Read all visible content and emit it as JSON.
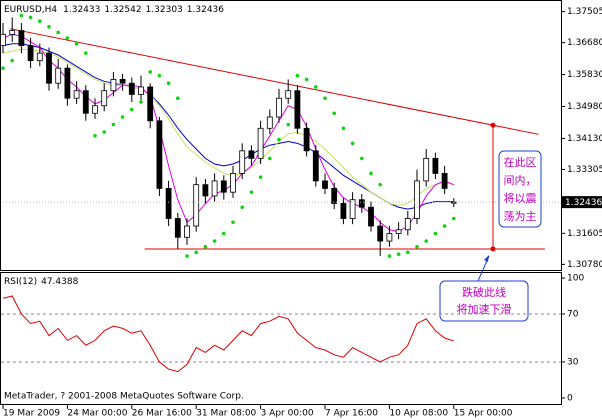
{
  "chart_data": [
    {
      "type": "candlestick",
      "title": "EURUSD,H4",
      "xlim": [
        0,
        60
      ],
      "xticks": [
        {
          "value": 0,
          "label": "19 Mar 2009"
        },
        {
          "value": 7,
          "label": "24 Mar 00:00"
        },
        {
          "value": 14,
          "label": "26 Mar 16:00"
        },
        {
          "value": 21,
          "label": "31 Mar 08:00"
        },
        {
          "value": 28,
          "label": "3 Apr 00:00"
        },
        {
          "value": 35,
          "label": "7 Apr 16:00"
        },
        {
          "value": 42,
          "label": "10 Apr 08:00"
        },
        {
          "value": 49,
          "label": "15 Apr 00:00"
        }
      ],
      "ylim": [
        1.3063,
        1.3776
      ],
      "yticks": [
        1.37505,
        {
          "value": 1.3668,
          "label": "1.36680"
        },
        {
          "value": 1.3583,
          "label": "1.35830"
        },
        {
          "value": 1.3498,
          "label": "1.34980"
        },
        {
          "value": 1.3413,
          "label": "1.34130"
        },
        1.33305,
        1.31605,
        {
          "value": 1.3078,
          "label": "1.30780"
        }
      ],
      "grid": false,
      "up_color": "#ffffff",
      "down_color": "#000000",
      "open": [
        1.366,
        1.369,
        1.37,
        1.366,
        1.362,
        1.364,
        1.356,
        1.36,
        1.352,
        1.354,
        1.348,
        1.35,
        1.354,
        1.357,
        1.356,
        1.353,
        1.355,
        1.346,
        1.328,
        1.32,
        1.315,
        1.318,
        1.329,
        1.326,
        1.33,
        1.327,
        1.332,
        1.338,
        1.336,
        1.344,
        1.347,
        1.352,
        1.354,
        1.344,
        1.338,
        1.33,
        1.328,
        1.324,
        1.32,
        1.325,
        1.323,
        1.318,
        1.314,
        1.316,
        1.317,
        1.32,
        1.33,
        1.336,
        1.332,
        1.32433
      ],
      "high": [
        1.372,
        1.3735,
        1.372,
        1.368,
        1.3665,
        1.3655,
        1.3625,
        1.361,
        1.3565,
        1.3555,
        1.352,
        1.356,
        1.359,
        1.3585,
        1.3575,
        1.358,
        1.356,
        1.347,
        1.33,
        1.3215,
        1.32,
        1.331,
        1.3305,
        1.332,
        1.3315,
        1.334,
        1.34,
        1.3395,
        1.346,
        1.349,
        1.3545,
        1.357,
        1.3555,
        1.3455,
        1.3395,
        1.332,
        1.3295,
        1.3255,
        1.327,
        1.3265,
        1.3245,
        1.3195,
        1.318,
        1.319,
        1.322,
        1.333,
        1.3385,
        1.3375,
        1.334,
        1.32542
      ],
      "low": [
        1.364,
        1.367,
        1.364,
        1.36,
        1.3605,
        1.354,
        1.3545,
        1.35,
        1.3505,
        1.346,
        1.3465,
        1.3485,
        1.3525,
        1.354,
        1.351,
        1.3515,
        1.344,
        1.326,
        1.318,
        1.312,
        1.313,
        1.3165,
        1.324,
        1.3245,
        1.325,
        1.3255,
        1.3305,
        1.334,
        1.3345,
        1.3425,
        1.3455,
        1.3505,
        1.3425,
        1.3365,
        1.3285,
        1.3265,
        1.3225,
        1.3185,
        1.3185,
        1.3215,
        1.3165,
        1.31,
        1.3125,
        1.3145,
        1.3155,
        1.3185,
        1.3285,
        1.3305,
        1.3265,
        1.32303
      ],
      "close": [
        1.369,
        1.37,
        1.366,
        1.362,
        1.364,
        1.356,
        1.36,
        1.352,
        1.354,
        1.348,
        1.35,
        1.354,
        1.357,
        1.356,
        1.353,
        1.355,
        1.346,
        1.328,
        1.32,
        1.315,
        1.318,
        1.329,
        1.326,
        1.33,
        1.327,
        1.332,
        1.338,
        1.336,
        1.344,
        1.347,
        1.352,
        1.354,
        1.344,
        1.338,
        1.33,
        1.328,
        1.324,
        1.32,
        1.325,
        1.323,
        1.318,
        1.314,
        1.316,
        1.317,
        1.32,
        1.33,
        1.336,
        1.332,
        1.328,
        1.32436
      ],
      "series": [
        {
          "color": "#0000cc",
          "values": [
            1.366,
            1.3665,
            1.3665,
            1.366,
            1.3655,
            1.3645,
            1.3635,
            1.362,
            1.3605,
            1.359,
            1.3575,
            1.3565,
            1.356,
            1.3555,
            1.355,
            1.3545,
            1.353,
            1.3505,
            1.3475,
            1.344,
            1.341,
            1.3385,
            1.336,
            1.3345,
            1.334,
            1.3345,
            1.3355,
            1.337,
            1.3385,
            1.3395,
            1.34,
            1.3405,
            1.34,
            1.339,
            1.3375,
            1.3355,
            1.3335,
            1.3315,
            1.33,
            1.3285,
            1.327,
            1.3255,
            1.324,
            1.323,
            1.3225,
            1.323,
            1.324,
            1.3245,
            1.3245,
            1.3245
          ]
        },
        {
          "color": "#c8e060",
          "values": [
            1.364,
            1.3645,
            1.365,
            1.365,
            1.3645,
            1.364,
            1.363,
            1.3615,
            1.36,
            1.3585,
            1.357,
            1.356,
            1.3555,
            1.3555,
            1.355,
            1.3545,
            1.353,
            1.35,
            1.3465,
            1.3425,
            1.339,
            1.337,
            1.335,
            1.3335,
            1.332,
            1.3315,
            1.332,
            1.3335,
            1.3355,
            1.338,
            1.3405,
            1.3425,
            1.343,
            1.342,
            1.3405,
            1.3385,
            1.336,
            1.3335,
            1.331,
            1.329,
            1.327,
            1.3255,
            1.324,
            1.3235,
            1.324,
            1.326,
            1.328,
            1.329,
            1.3295,
            1.329
          ]
        },
        {
          "color": "#e000e0",
          "values": [
            1.368,
            1.369,
            1.3685,
            1.367,
            1.3655,
            1.362,
            1.36,
            1.357,
            1.355,
            1.3525,
            1.3505,
            1.3515,
            1.3535,
            1.3555,
            1.3555,
            1.355,
            1.3525,
            1.344,
            1.334,
            1.325,
            1.319,
            1.321,
            1.324,
            1.3265,
            1.3275,
            1.329,
            1.332,
            1.334,
            1.338,
            1.342,
            1.346,
            1.35,
            1.349,
            1.3445,
            1.3385,
            1.333,
            1.3285,
            1.3255,
            1.324,
            1.323,
            1.3215,
            1.319,
            1.317,
            1.3165,
            1.318,
            1.3215,
            1.326,
            1.329,
            1.33,
            1.329
          ]
        }
      ],
      "sar_color": "#11d411",
      "sar": [
        1.36,
        1.362,
        1.374,
        1.3735,
        1.3725,
        1.371,
        1.3695,
        1.368,
        1.3665,
        1.364,
        1.342,
        1.343,
        1.345,
        1.347,
        1.349,
        1.351,
        1.359,
        1.358,
        1.356,
        1.352,
        1.31,
        1.311,
        1.3125,
        1.314,
        1.316,
        1.319,
        1.323,
        1.327,
        1.331,
        1.336,
        1.341,
        1.345,
        1.358,
        1.357,
        1.355,
        1.352,
        1.348,
        1.344,
        1.34,
        1.336,
        1.332,
        1.329,
        1.31,
        1.3105,
        1.311,
        1.3125,
        1.314,
        1.316,
        1.318,
        1.32
      ],
      "trendlines": [
        {
          "color": "#dd0000",
          "x": [
            0.8,
            58.2
          ],
          "y": [
            1.3705,
            1.3424
          ]
        },
        {
          "color": "#dd0000",
          "x": [
            15.4,
            58.9
          ],
          "y": [
            1.3119,
            1.3119
          ]
        }
      ],
      "annotations": [
        {
          "lines": [
            "在此区",
            "间内，",
            "将以震",
            "荡为主"
          ]
        },
        {
          "lines": [
            "跌破此线",
            "将加速下滑"
          ]
        }
      ]
    },
    {
      "type": "line",
      "title": "RSI(12)",
      "xlim": [
        0,
        60
      ],
      "ylim": [
        0,
        100
      ],
      "yticks": [
        100,
        70,
        30,
        0
      ],
      "grid": "dashed",
      "series": [
        {
          "color": "#dd0000",
          "values": [
            83,
            85,
            70,
            62,
            64,
            52,
            58,
            48,
            52,
            44,
            48,
            56,
            60,
            58,
            54,
            56,
            44,
            30,
            24,
            22,
            28,
            42,
            38,
            44,
            40,
            48,
            56,
            52,
            62,
            64,
            68,
            66,
            54,
            48,
            42,
            40,
            36,
            34,
            42,
            38,
            34,
            30,
            34,
            36,
            44,
            62,
            66,
            56,
            50,
            47.4388
          ]
        }
      ]
    }
  ],
  "footer": "MetaTrader, ? 2001-2008 MetaQuotes Software Corp."
}
